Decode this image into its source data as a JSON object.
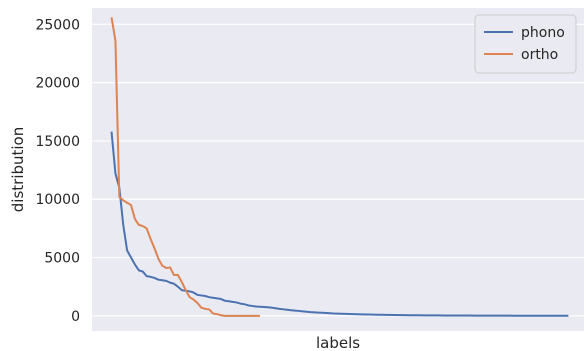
{
  "chart_data": {
    "type": "line",
    "xlabel": "labels",
    "ylabel": "distribution",
    "ylim": [
      -1300,
      26400
    ],
    "yticks": [
      0,
      5000,
      10000,
      15000,
      20000,
      25000
    ],
    "grid": true,
    "legend_position": "top-right",
    "series": [
      {
        "name": "phono",
        "color": "#4c72b0",
        "x": [
          0,
          1,
          2,
          3,
          4,
          5,
          6,
          7,
          8,
          9,
          10,
          11,
          12,
          13,
          14,
          15,
          16,
          17,
          18,
          19,
          20,
          21,
          22,
          23,
          24,
          25,
          26,
          27,
          28,
          29,
          30,
          31,
          32,
          33,
          34,
          35,
          36,
          37,
          38,
          39,
          40,
          41,
          42,
          43,
          44,
          45,
          46,
          47,
          48,
          49,
          50,
          51,
          52,
          53,
          54,
          55,
          56,
          57,
          58,
          59,
          60,
          61,
          62,
          63,
          64,
          65,
          66,
          67,
          68,
          69,
          70,
          71,
          72,
          73,
          74,
          75,
          76,
          77,
          78,
          79,
          80,
          81,
          82,
          83,
          84,
          85,
          86,
          87,
          88,
          89,
          90,
          91,
          92,
          93,
          94,
          95,
          96,
          97,
          98,
          99,
          100,
          101,
          102,
          103,
          104,
          105,
          106,
          107,
          108,
          109,
          110,
          111,
          112,
          113,
          114,
          115,
          116,
          117
        ],
        "y": [
          15800,
          12200,
          11000,
          7800,
          5600,
          5000,
          4400,
          3900,
          3800,
          3400,
          3350,
          3250,
          3100,
          3050,
          3000,
          2850,
          2750,
          2500,
          2200,
          2150,
          2100,
          2000,
          1800,
          1750,
          1700,
          1600,
          1550,
          1500,
          1450,
          1300,
          1250,
          1200,
          1150,
          1050,
          1000,
          900,
          850,
          800,
          780,
          760,
          740,
          700,
          650,
          600,
          560,
          520,
          480,
          450,
          420,
          380,
          350,
          320,
          300,
          280,
          260,
          240,
          220,
          200,
          190,
          180,
          170,
          160,
          150,
          140,
          130,
          120,
          110,
          100,
          95,
          90,
          85,
          80,
          75,
          70,
          65,
          60,
          55,
          50,
          48,
          46,
          44,
          42,
          40,
          38,
          36,
          34,
          32,
          30,
          28,
          27,
          26,
          25,
          24,
          23,
          22,
          21,
          20,
          19,
          18,
          17,
          16,
          15,
          14,
          13,
          12,
          11,
          10,
          10,
          10,
          10,
          10,
          10,
          10,
          10,
          10,
          10,
          10,
          10
        ]
      },
      {
        "name": "ortho",
        "color": "#dd8452",
        "x": [
          0,
          1,
          2,
          3,
          4,
          5,
          6,
          7,
          8,
          9,
          10,
          11,
          12,
          13,
          14,
          15,
          16,
          17,
          18,
          19,
          20,
          21,
          22,
          23,
          24,
          25,
          26,
          27,
          28,
          29,
          30,
          31,
          32,
          33,
          34,
          35,
          36,
          37,
          38
        ],
        "y": [
          25600,
          23600,
          10200,
          9900,
          9700,
          9500,
          8300,
          7800,
          7700,
          7500,
          6600,
          5800,
          4900,
          4300,
          4100,
          4150,
          3500,
          3500,
          2900,
          2200,
          1600,
          1400,
          1100,
          700,
          600,
          550,
          200,
          150,
          50,
          0,
          0,
          0,
          0,
          0,
          0,
          0,
          0,
          0,
          0
        ]
      }
    ]
  }
}
